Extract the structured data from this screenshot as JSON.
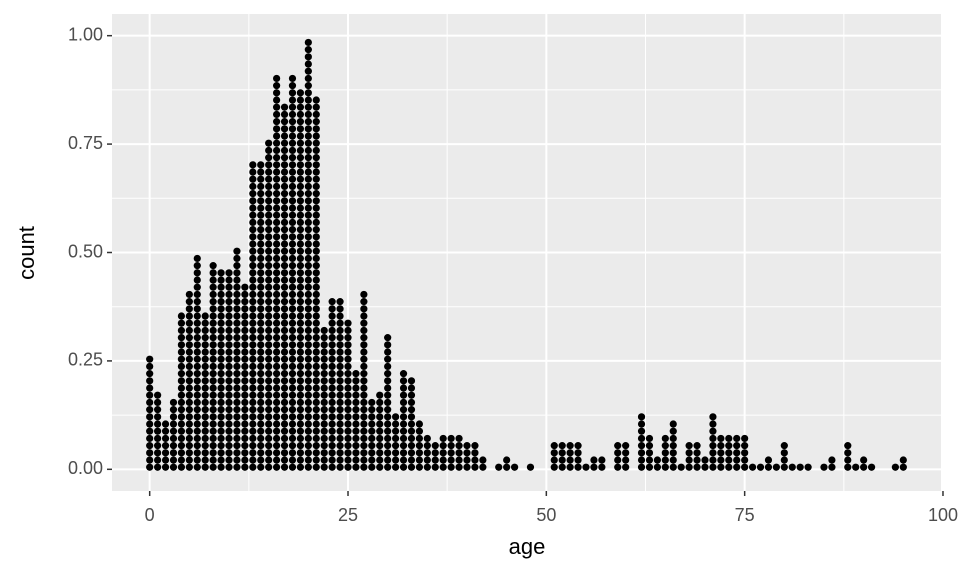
{
  "chart_data": {
    "type": "dotplot",
    "x_label": "age",
    "y_label": "count",
    "color": "#000000",
    "grid": true,
    "x": [
      0,
      1,
      2,
      3,
      4,
      5,
      6,
      7,
      8,
      9,
      10,
      11,
      12,
      13,
      14,
      15,
      16,
      17,
      18,
      19,
      20,
      21,
      22,
      23,
      24,
      25,
      26,
      27,
      28,
      29,
      30,
      31,
      32,
      33,
      34,
      35,
      36,
      37,
      38,
      39,
      40,
      41,
      42,
      44,
      45,
      46,
      48,
      51,
      52,
      53,
      54,
      55,
      56,
      57,
      59,
      60,
      62,
      63,
      64,
      65,
      66,
      67,
      68,
      69,
      70,
      71,
      72,
      73,
      74,
      75,
      76,
      77,
      78,
      79,
      80,
      81,
      82,
      83,
      85,
      86,
      88,
      89,
      90,
      91,
      94,
      95
    ],
    "values": [
      0.25,
      0.18,
      0.1,
      0.16,
      0.36,
      0.41,
      0.49,
      0.36,
      0.47,
      0.45,
      0.45,
      0.5,
      0.43,
      0.71,
      0.71,
      0.76,
      0.9,
      0.84,
      0.9,
      0.87,
      0.98,
      0.85,
      0.33,
      0.39,
      0.39,
      0.34,
      0.22,
      0.41,
      0.16,
      0.18,
      0.3,
      0.13,
      0.23,
      0.21,
      0.1,
      0.08,
      0.05,
      0.08,
      0.07,
      0.08,
      0.06,
      0.05,
      0.03,
      0.01,
      0.03,
      0.01,
      0.01,
      0.05,
      0.05,
      0.05,
      0.05,
      0.01,
      0.03,
      0.03,
      0.05,
      0.05,
      0.12,
      0.07,
      0.03,
      0.07,
      0.1,
      0.01,
      0.05,
      0.05,
      0.03,
      0.12,
      0.07,
      0.08,
      0.07,
      0.08,
      0.01,
      0.01,
      0.03,
      0.01,
      0.05,
      0.01,
      0.01,
      0.01,
      0.01,
      0.03,
      0.05,
      0.01,
      0.03,
      0.01,
      0.01,
      0.03
    ],
    "xlim": [
      -4.75,
      99.75
    ],
    "xticks": [
      0,
      25,
      50,
      75,
      100
    ],
    "ylim": [
      -0.05,
      1.05
    ],
    "yticks": [
      {
        "value": 0,
        "label": "0.00"
      },
      {
        "value": 0.25,
        "label": "0.25"
      },
      {
        "value": 0.5,
        "label": "0.50"
      },
      {
        "value": 0.75,
        "label": "0.75"
      },
      {
        "value": 1,
        "label": "1.00"
      }
    ]
  }
}
